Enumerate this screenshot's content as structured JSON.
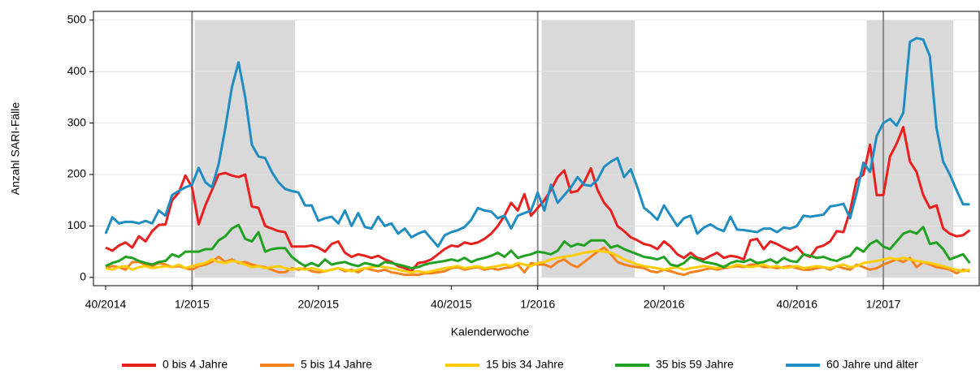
{
  "chart_data": {
    "type": "line",
    "y_label": "Anzahl SARI-Fälle",
    "x_label": "Kalenderwoche",
    "categories": [
      "40/2014",
      null,
      null,
      null,
      null,
      null,
      null,
      null,
      null,
      null,
      null,
      null,
      null,
      "1/2015",
      null,
      null,
      null,
      null,
      null,
      null,
      null,
      null,
      null,
      null,
      null,
      null,
      null,
      null,
      null,
      null,
      null,
      null,
      "20/2015",
      null,
      null,
      null,
      null,
      null,
      null,
      null,
      null,
      null,
      null,
      null,
      null,
      null,
      null,
      null,
      null,
      null,
      null,
      null,
      "40/2015",
      null,
      null,
      null,
      null,
      null,
      null,
      null,
      null,
      null,
      null,
      null,
      null,
      "1/2016",
      null,
      null,
      null,
      null,
      null,
      null,
      null,
      null,
      null,
      null,
      null,
      null,
      null,
      null,
      null,
      null,
      null,
      null,
      "20/2016",
      null,
      null,
      null,
      null,
      null,
      null,
      null,
      null,
      null,
      null,
      null,
      null,
      null,
      null,
      null,
      null,
      null,
      null,
      null,
      "40/2016",
      null,
      null,
      null,
      null,
      null,
      null,
      null,
      null,
      null,
      null,
      null,
      null,
      "1/2017",
      null,
      null,
      null,
      null,
      null,
      null,
      null,
      null,
      null,
      null,
      null,
      null,
      null
    ],
    "series": [
      {
        "name": "0 bis 4 Jahre",
        "color": "#e8201e",
        "values": [
          58,
          52,
          62,
          68,
          58,
          80,
          70,
          90,
          102,
          103,
          150,
          165,
          198,
          175,
          103,
          140,
          170,
          200,
          203,
          198,
          195,
          200,
          138,
          135,
          100,
          95,
          90,
          88,
          60,
          60,
          60,
          62,
          58,
          50,
          65,
          70,
          48,
          40,
          45,
          42,
          38,
          42,
          35,
          30,
          22,
          18,
          12,
          28,
          30,
          35,
          45,
          55,
          62,
          60,
          68,
          65,
          68,
          75,
          85,
          100,
          120,
          145,
          130,
          162,
          120,
          135,
          150,
          170,
          195,
          208,
          165,
          168,
          185,
          212,
          170,
          145,
          130,
          100,
          90,
          78,
          72,
          65,
          62,
          55,
          70,
          60,
          45,
          38,
          48,
          38,
          35,
          42,
          48,
          38,
          42,
          40,
          35,
          72,
          75,
          55,
          70,
          65,
          58,
          52,
          60,
          45,
          40,
          58,
          62,
          70,
          90,
          88,
          130,
          190,
          200,
          258,
          160,
          160,
          235,
          260,
          292,
          225,
          205,
          160,
          135,
          140,
          95,
          85,
          80,
          82,
          92
        ]
      },
      {
        "name": "5 bis 14 Jahre",
        "color": "#f5821f",
        "values": [
          18,
          22,
          20,
          15,
          30,
          30,
          25,
          22,
          28,
          25,
          20,
          22,
          18,
          15,
          22,
          25,
          30,
          40,
          30,
          35,
          28,
          30,
          25,
          22,
          20,
          15,
          10,
          10,
          18,
          15,
          18,
          12,
          10,
          12,
          15,
          18,
          12,
          15,
          10,
          18,
          15,
          12,
          15,
          10,
          8,
          5,
          5,
          5,
          8,
          8,
          10,
          12,
          18,
          20,
          15,
          18,
          20,
          15,
          18,
          15,
          18,
          20,
          25,
          10,
          28,
          25,
          25,
          20,
          30,
          35,
          25,
          20,
          30,
          40,
          50,
          58,
          45,
          30,
          25,
          22,
          20,
          18,
          12,
          10,
          15,
          12,
          8,
          5,
          10,
          12,
          15,
          18,
          15,
          18,
          20,
          22,
          20,
          25,
          25,
          20,
          20,
          18,
          20,
          22,
          18,
          15,
          15,
          18,
          20,
          15,
          22,
          18,
          15,
          25,
          20,
          15,
          18,
          25,
          30,
          35,
          30,
          38,
          20,
          30,
          25,
          20,
          18,
          15,
          8,
          15,
          12
        ]
      },
      {
        "name": "15 bis 34 Jahre",
        "color": "#ffcc00",
        "values": [
          18,
          15,
          20,
          22,
          15,
          20,
          22,
          18,
          20,
          22,
          20,
          25,
          18,
          22,
          25,
          28,
          35,
          30,
          28,
          32,
          30,
          25,
          20,
          22,
          18,
          20,
          22,
          18,
          15,
          18,
          15,
          18,
          15,
          12,
          15,
          18,
          15,
          12,
          15,
          18,
          20,
          22,
          20,
          18,
          15,
          12,
          10,
          12,
          10,
          12,
          15,
          18,
          20,
          22,
          18,
          20,
          22,
          18,
          20,
          22,
          25,
          22,
          28,
          25,
          22,
          28,
          30,
          35,
          38,
          40,
          42,
          45,
          48,
          50,
          52,
          50,
          48,
          42,
          35,
          30,
          25,
          22,
          20,
          18,
          15,
          18,
          20,
          15,
          18,
          20,
          22,
          20,
          18,
          22,
          20,
          25,
          22,
          20,
          22,
          25,
          20,
          22,
          18,
          20,
          22,
          18,
          20,
          22,
          20,
          18,
          22,
          25,
          20,
          22,
          28,
          30,
          32,
          35,
          38,
          35,
          38,
          35,
          32,
          30,
          28,
          25,
          22,
          18,
          15,
          12,
          15
        ]
      },
      {
        "name": "35 bis 59 Jahre",
        "color": "#21a121",
        "values": [
          22,
          28,
          32,
          40,
          38,
          32,
          28,
          25,
          30,
          32,
          45,
          40,
          50,
          50,
          50,
          55,
          55,
          72,
          80,
          95,
          102,
          75,
          70,
          88,
          50,
          55,
          57,
          57,
          40,
          30,
          22,
          28,
          22,
          35,
          25,
          28,
          30,
          25,
          22,
          28,
          25,
          22,
          30,
          28,
          25,
          22,
          18,
          20,
          25,
          28,
          30,
          32,
          35,
          32,
          38,
          30,
          35,
          38,
          42,
          48,
          40,
          52,
          38,
          42,
          45,
          50,
          48,
          45,
          52,
          70,
          60,
          65,
          62,
          72,
          72,
          72,
          58,
          62,
          55,
          50,
          45,
          40,
          38,
          35,
          40,
          25,
          22,
          28,
          40,
          35,
          30,
          28,
          25,
          20,
          28,
          32,
          30,
          35,
          28,
          30,
          35,
          28,
          38,
          32,
          30,
          45,
          42,
          38,
          40,
          35,
          32,
          38,
          42,
          58,
          50,
          65,
          72,
          60,
          55,
          70,
          85,
          90,
          85,
          98,
          65,
          68,
          55,
          35,
          40,
          45,
          28
        ]
      },
      {
        "name": "60 Jahre und älter",
        "color": "#1f8dc1",
        "values": [
          85,
          117,
          105,
          108,
          108,
          105,
          110,
          105,
          130,
          120,
          160,
          168,
          175,
          180,
          213,
          185,
          175,
          220,
          290,
          370,
          418,
          350,
          258,
          235,
          232,
          205,
          185,
          172,
          168,
          165,
          140,
          140,
          110,
          115,
          118,
          105,
          130,
          100,
          125,
          98,
          95,
          118,
          100,
          105,
          85,
          95,
          78,
          85,
          90,
          75,
          60,
          82,
          88,
          92,
          98,
          112,
          135,
          130,
          128,
          115,
          120,
          95,
          120,
          125,
          130,
          165,
          130,
          180,
          145,
          160,
          175,
          195,
          180,
          178,
          190,
          215,
          225,
          232,
          195,
          210,
          175,
          135,
          125,
          112,
          140,
          120,
          100,
          115,
          120,
          85,
          97,
          103,
          95,
          90,
          118,
          93,
          92,
          90,
          88,
          95,
          95,
          88,
          97,
          95,
          100,
          120,
          118,
          120,
          122,
          138,
          140,
          143,
          115,
          165,
          223,
          205,
          275,
          300,
          308,
          295,
          320,
          458,
          465,
          462,
          430,
          290,
          225,
          200,
          170,
          142,
          142
        ]
      }
    ],
    "ylim": [
      -16,
      517
    ],
    "yticks": [
      0,
      100,
      200,
      300,
      400,
      500
    ],
    "grid": true,
    "shaded_ranges": [
      [
        13.4,
        28.5
      ],
      [
        65.6,
        79.6
      ],
      [
        114.5,
        127.5
      ]
    ],
    "vlines": [
      13,
      65,
      117
    ]
  }
}
